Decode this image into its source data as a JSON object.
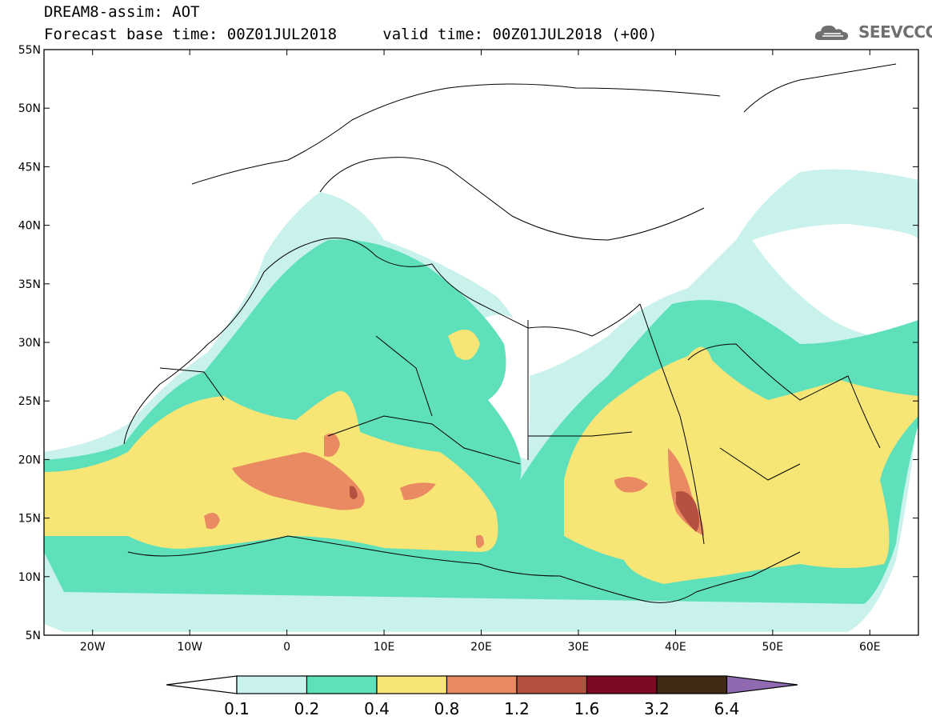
{
  "title": {
    "line1": "DREAM8-assim: AOT",
    "base_time_label": "Forecast base time: 00Z01JUL2018",
    "valid_time_label": "valid time: 00Z01JUL2018 (+00)"
  },
  "logo": {
    "text": "SEEVCCC",
    "icon": "cloud-logo-icon"
  },
  "map": {
    "lon_range": [
      -25,
      65
    ],
    "lat_range": [
      5,
      55
    ],
    "lat_ticks": [
      {
        "value": 55,
        "label": "55N"
      },
      {
        "value": 50,
        "label": "50N"
      },
      {
        "value": 45,
        "label": "45N"
      },
      {
        "value": 40,
        "label": "40N"
      },
      {
        "value": 35,
        "label": "35N"
      },
      {
        "value": 30,
        "label": "30N"
      },
      {
        "value": 25,
        "label": "25N"
      },
      {
        "value": 20,
        "label": "20N"
      },
      {
        "value": 15,
        "label": "15N"
      },
      {
        "value": 10,
        "label": "10N"
      },
      {
        "value": 5,
        "label": "5N"
      }
    ],
    "lon_ticks": [
      {
        "value": -20,
        "label": "20W"
      },
      {
        "value": -10,
        "label": "10W"
      },
      {
        "value": 0,
        "label": "0"
      },
      {
        "value": 10,
        "label": "10E"
      },
      {
        "value": 20,
        "label": "20E"
      },
      {
        "value": 30,
        "label": "30E"
      },
      {
        "value": 40,
        "label": "40E"
      },
      {
        "value": 50,
        "label": "50E"
      },
      {
        "value": 60,
        "label": "60E"
      }
    ]
  },
  "colorbar": {
    "labels": [
      "0.1",
      "0.2",
      "0.4",
      "0.8",
      "1.2",
      "1.6",
      "3.2",
      "6.4"
    ],
    "colors": [
      "#c9f2ec",
      "#5ee0bb",
      "#f7e575",
      "#ea8a63",
      "#b65040",
      "#7c0a24",
      "#3f2a14"
    ],
    "under_color": "#ffffff",
    "over_color": "#8f6ab0"
  }
}
